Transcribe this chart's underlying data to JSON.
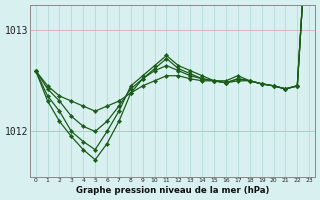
{
  "title": "Graphe pression niveau de la mer (hPa)",
  "background_color": "#d8f0f0",
  "grid_color": "#b8dede",
  "line_color": "#1a5c1a",
  "hours": [
    0,
    1,
    2,
    3,
    4,
    5,
    6,
    7,
    8,
    9,
    10,
    11,
    12,
    13,
    14,
    15,
    16,
    17,
    18,
    19,
    20,
    21,
    22,
    23
  ],
  "series1": [
    1012.6,
    1012.45,
    1012.35,
    1012.3,
    1012.25,
    1012.2,
    1012.25,
    1012.3,
    1012.38,
    1012.45,
    1012.5,
    1012.55,
    1012.55,
    1012.52,
    1012.5,
    1012.5,
    1012.48,
    1012.5,
    1012.5,
    1012.47,
    1012.45,
    1012.42,
    1012.45,
    1014.35
  ],
  "series2": [
    1012.6,
    1012.42,
    1012.3,
    1012.15,
    1012.05,
    1012.0,
    1012.1,
    1012.25,
    1012.42,
    1012.52,
    1012.6,
    1012.65,
    1012.6,
    1012.55,
    1012.52,
    1012.5,
    1012.48,
    1012.52,
    1012.5,
    1012.47,
    1012.45,
    1012.42,
    1012.45,
    1014.35
  ],
  "series3": [
    1012.6,
    1012.35,
    1012.2,
    1012.0,
    1011.9,
    1011.82,
    1012.0,
    1012.2,
    1012.45,
    1012.55,
    1012.65,
    1012.75,
    1012.65,
    1012.6,
    1012.55,
    1012.5,
    1012.5,
    1012.55,
    1012.5,
    1012.47,
    1012.45,
    1012.42,
    1012.45,
    1014.35
  ],
  "series4": [
    1012.6,
    1012.3,
    1012.1,
    1011.95,
    1011.82,
    1011.72,
    1011.88,
    1012.1,
    1012.38,
    1012.52,
    1012.62,
    1012.72,
    1012.62,
    1012.57,
    1012.52,
    1012.5,
    1012.48,
    1012.52,
    1012.5,
    1012.47,
    1012.45,
    1012.42,
    1012.45,
    1014.35
  ],
  "ylim": [
    1011.55,
    1013.25
  ],
  "ytick_positions": [
    1012.0,
    1013.0
  ],
  "ytick_labels": [
    "1012",
    "1013"
  ],
  "markersize": 2.2,
  "linewidth": 0.9
}
